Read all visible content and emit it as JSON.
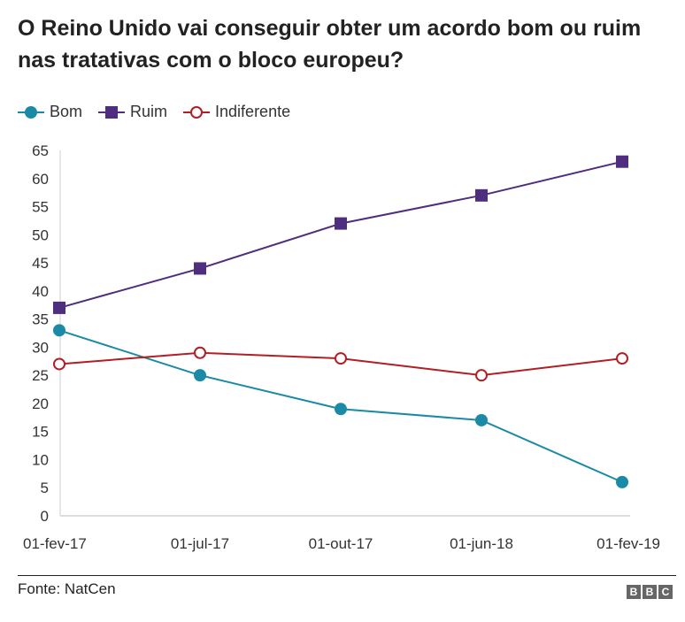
{
  "chart_data": {
    "type": "line",
    "title": "O Reino Unido vai conseguir obter um acordo bom ou ruim nas tratativas com o bloco europeu?",
    "categories": [
      "01-fev-17",
      "01-jul-17",
      "01-out-17",
      "01-jun-18",
      "01-fev-19"
    ],
    "ylim": [
      0,
      65
    ],
    "yticks": [
      0,
      5,
      10,
      15,
      20,
      25,
      30,
      35,
      40,
      45,
      50,
      55,
      60,
      65
    ],
    "grid": false,
    "legend": "top-left",
    "series": [
      {
        "name": "Bom",
        "values": [
          33,
          25,
          19,
          17,
          6
        ],
        "color": "#1b8aa6",
        "marker": "circle-filled"
      },
      {
        "name": "Ruim",
        "values": [
          37,
          44,
          52,
          57,
          63
        ],
        "color": "#4f2d7f",
        "marker": "square"
      },
      {
        "name": "Indiferente",
        "values": [
          27,
          29,
          28,
          25,
          28
        ],
        "color": "#b11e23",
        "marker": "circle-open"
      }
    ]
  },
  "footer": {
    "source": "Fonte: NatCen",
    "logo": "BBC"
  }
}
